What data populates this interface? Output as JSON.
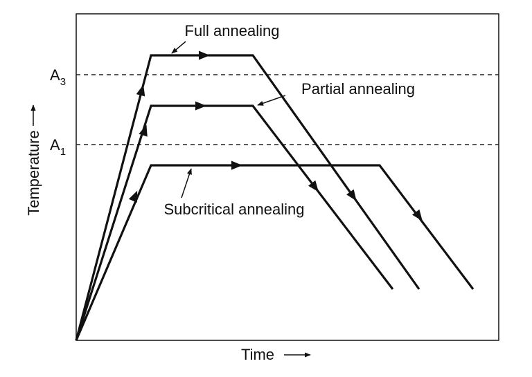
{
  "axes": {
    "y_label": "Temperature",
    "x_label": "Time"
  },
  "levels": [
    {
      "label": "A",
      "subscript": "3"
    },
    {
      "label": "A",
      "subscript": "1"
    }
  ],
  "curves": [
    {
      "label": "Full annealing"
    },
    {
      "label": "Partial annealing"
    },
    {
      "label": "Subcritical annealing"
    }
  ]
}
